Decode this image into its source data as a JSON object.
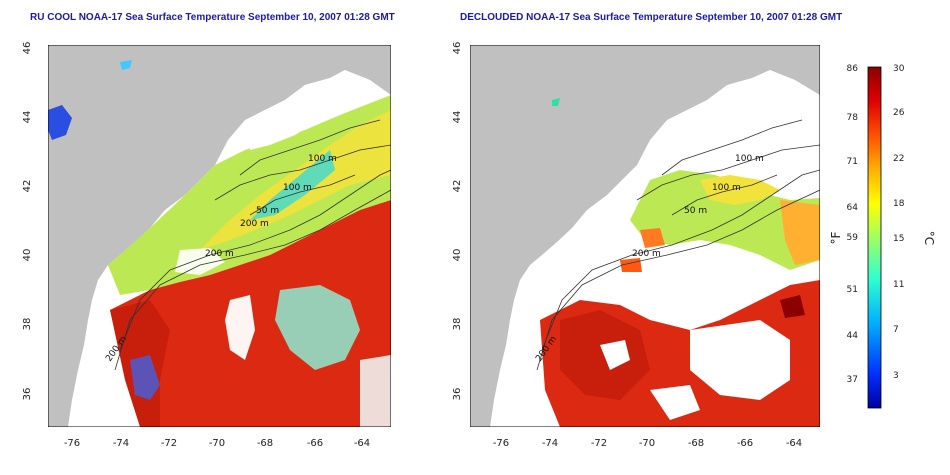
{
  "panels": [
    {
      "title": "RU COOL NOAA-17 Sea Surface Temperature September 10, 2007 01:28 GMT",
      "contour_labels": [
        "100 m",
        "100 m",
        "50 m",
        "200 m",
        "200 m",
        "200 m"
      ]
    },
    {
      "title": "DECLOUDED NOAA-17 Sea Surface Temperature September 10, 2007 01:28 GMT",
      "contour_labels": [
        "100 m",
        "100 m",
        "50 m",
        "200 m",
        "200 m"
      ]
    }
  ],
  "axes": {
    "x_ticks": [
      "-76",
      "-74",
      "-72",
      "-70",
      "-68",
      "-66",
      "-64"
    ],
    "y_ticks": [
      "46",
      "44",
      "42",
      "40",
      "38",
      "36"
    ]
  },
  "colorbar": {
    "f_unit": "°F",
    "c_unit": "°C",
    "f_ticks": [
      "86",
      "78",
      "71",
      "64",
      "59",
      "51",
      "44",
      "37"
    ],
    "c_ticks": [
      "30",
      "26",
      "22",
      "18",
      "15",
      "11",
      "7",
      "3"
    ],
    "stops": [
      "#0000a0",
      "#0030ff",
      "#00b0ff",
      "#30ffd0",
      "#a0ff60",
      "#ffff00",
      "#ffb000",
      "#ff5000",
      "#e00000",
      "#8b0000"
    ]
  },
  "colors": {
    "land": "#c0c0c0",
    "warm": "#dc2a12",
    "cloud": "#ffffff"
  }
}
